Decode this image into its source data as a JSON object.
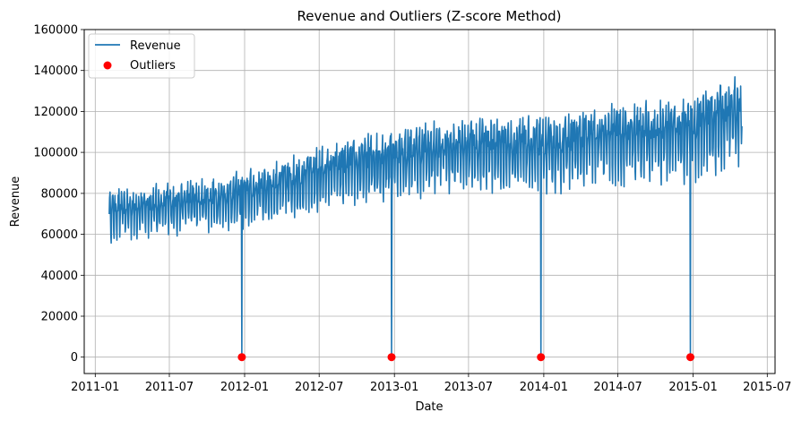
{
  "chart_data": {
    "type": "line",
    "title": "Revenue and Outliers (Z-score Method)",
    "xlabel": "Date",
    "ylabel": "Revenue",
    "grid": true,
    "legend_position": "top-left",
    "xlim": [
      "2010-12-05",
      "2015-07-20"
    ],
    "ylim": [
      -8000,
      160000
    ],
    "x_ticks": [
      "2011-01",
      "2011-07",
      "2012-01",
      "2012-07",
      "2013-01",
      "2013-07",
      "2014-01",
      "2014-07",
      "2015-01",
      "2015-07"
    ],
    "y_ticks": [
      0,
      20000,
      40000,
      60000,
      80000,
      100000,
      120000,
      140000,
      160000
    ],
    "series": [
      {
        "name": "Revenue",
        "style": "line",
        "color": "#1f77b4",
        "start": "2011-02-04",
        "end": "2015-04-30",
        "trend": [
          {
            "x": "2011-02-04",
            "y": 70000
          },
          {
            "x": "2011-07-01",
            "y": 73000
          },
          {
            "x": "2012-01-01",
            "y": 78000
          },
          {
            "x": "2012-07-01",
            "y": 88000
          },
          {
            "x": "2013-01-01",
            "y": 96000
          },
          {
            "x": "2013-07-01",
            "y": 101000
          },
          {
            "x": "2014-01-01",
            "y": 100000
          },
          {
            "x": "2014-07-01",
            "y": 106000
          },
          {
            "x": "2015-01-01",
            "y": 109000
          },
          {
            "x": "2015-04-30",
            "y": 118000
          }
        ],
        "amplitude": [
          {
            "x": "2011-02-04",
            "y": 11000
          },
          {
            "x": "2012-01-01",
            "y": 12000
          },
          {
            "x": "2013-01-01",
            "y": 15000
          },
          {
            "x": "2014-01-01",
            "y": 16000
          },
          {
            "x": "2015-04-30",
            "y": 19000
          }
        ]
      },
      {
        "name": "Outliers",
        "style": "scatter",
        "color": "#ff0000",
        "points": [
          {
            "x": "2011-12-25",
            "y": 0
          },
          {
            "x": "2012-12-25",
            "y": 0
          },
          {
            "x": "2013-12-25",
            "y": 0
          },
          {
            "x": "2014-12-25",
            "y": 0
          }
        ]
      }
    ]
  }
}
